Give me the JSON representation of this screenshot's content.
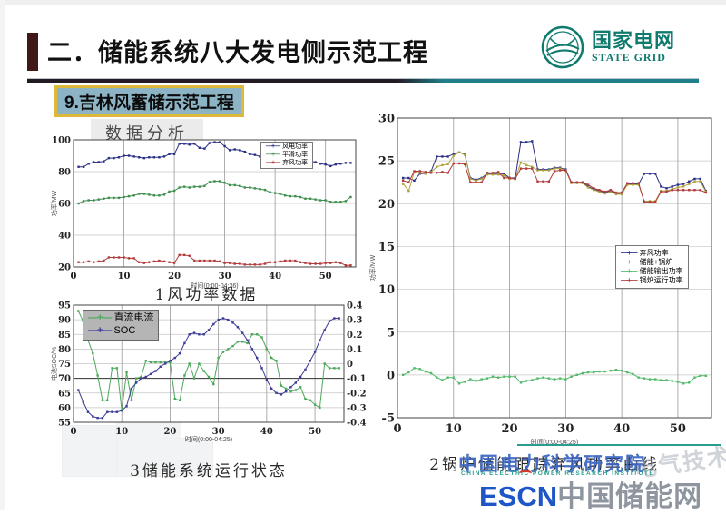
{
  "header": {
    "title": "二．储能系统八大发电侧示范工程",
    "logo_cn": "国家电网",
    "logo_en": "STATE GRID"
  },
  "subtitle": "9.吉林风蓄储示范工程",
  "section_label": "数据分析",
  "watermarks": {
    "cepri": "中国电力科学研究院",
    "cepri_en": "CHINA ELECTRIC POWER RESEARCH INSTITUTE",
    "escn_prefix": "ESCN",
    "escn_name": "中国储能网",
    "ghost": "电气技术"
  },
  "colors": {
    "brand_teal": "#0f7b6e",
    "highlight_border": "#ddb83a",
    "subtitle_bg": "#8cb4c5",
    "wm_blue": "#3a66c2",
    "escn_blue": "#1e56c8"
  },
  "chart_data": [
    {
      "id": "c1",
      "type": "line",
      "caption": "1风功率数据",
      "xlabel": "时间(0:00-04:26)",
      "ylabel": "功率/MW",
      "xlim": [
        0,
        56
      ],
      "x_ticks": [
        0,
        10,
        20,
        30,
        40,
        50
      ],
      "ylim": [
        20,
        100
      ],
      "y_ticks": [
        20,
        40,
        60,
        80,
        100
      ],
      "legend_position": "top-right",
      "series": [
        {
          "name": "风电功率",
          "color": "#2b2f86",
          "values": [
            83,
            83,
            85,
            86,
            86,
            86.5,
            88.5,
            88.5,
            89,
            90,
            90,
            89.5,
            89,
            88.5,
            89,
            89,
            89,
            89.5,
            91,
            91,
            97.5,
            97.5,
            97,
            97.5,
            95,
            94.5,
            98,
            98.5,
            98.5,
            96,
            93.5,
            94,
            93.5,
            92.5,
            91,
            90.5,
            89.5,
            89.5,
            88.5,
            88.5,
            88,
            88,
            88,
            87.5,
            87,
            86.5,
            86.5,
            86,
            85,
            84.5,
            83.5,
            84.5,
            85,
            85.5,
            85.5
          ]
        },
        {
          "name": "平滑功率",
          "color": "#3e8e4e",
          "values": [
            60,
            61.5,
            62,
            62,
            62.5,
            63,
            63.5,
            63.5,
            63.5,
            64,
            64.5,
            65,
            66,
            66,
            65.5,
            65,
            65,
            65.5,
            67.5,
            68,
            70,
            70.5,
            70,
            70.5,
            70.5,
            71,
            73.5,
            74,
            74,
            73,
            71.5,
            71.5,
            71,
            70,
            70,
            69.5,
            69,
            68.5,
            67,
            66.5,
            66,
            65,
            64.5,
            64.5,
            64,
            63,
            63,
            62.5,
            62,
            62,
            61,
            61,
            61,
            61.5,
            64
          ]
        },
        {
          "name": "弃风功率",
          "color": "#b23a3a",
          "values": [
            23,
            23,
            23.5,
            23,
            23.5,
            24,
            26,
            26,
            26,
            26,
            25.5,
            25.5,
            23,
            22.5,
            23,
            23.5,
            24,
            23.5,
            23,
            22.5,
            27.5,
            27.5,
            27,
            24,
            24,
            24,
            24,
            24,
            23.5,
            22.5,
            22.5,
            22,
            22,
            21.5,
            21.5,
            21.5,
            21.5,
            22,
            23,
            23,
            23.5,
            24,
            24,
            24,
            23,
            22.5,
            22,
            22,
            22,
            22.5,
            22.5,
            23,
            22.5,
            21,
            21
          ]
        }
      ]
    },
    {
      "id": "c2",
      "type": "line",
      "caption": "2锅炉储能跟踪弃风功率曲线",
      "xlabel": "时间(0:00-04:25)",
      "ylabel": "功率/MW",
      "xlim": [
        0,
        56
      ],
      "x_ticks": [
        0,
        10,
        20,
        30,
        40,
        50
      ],
      "ylim": [
        -5,
        30
      ],
      "y_ticks": [
        -5,
        0,
        5,
        10,
        15,
        20,
        25,
        30
      ],
      "legend_position": "middle-right",
      "series": [
        {
          "name": "弃风功率",
          "color": "#2b2f86",
          "values": [
            23,
            23,
            22.7,
            23.5,
            23.5,
            23.8,
            25.5,
            25.5,
            25.5,
            25.8,
            26,
            25.8,
            23,
            22.8,
            23,
            23.5,
            23.5,
            23.5,
            23.5,
            23,
            23,
            27.2,
            27.2,
            27.3,
            24,
            24,
            24,
            24.2,
            24.2,
            24,
            22.5,
            22.5,
            22.5,
            22,
            21.7,
            21.5,
            21.3,
            21.5,
            21.2,
            21.2,
            22.3,
            22.3,
            22.3,
            23.5,
            23.5,
            23.5,
            22,
            21.8,
            22,
            22.2,
            22.3,
            22.6,
            22.9,
            22.9,
            21.5
          ]
        },
        {
          "name": "储能+锅炉",
          "color": "#b0a23c",
          "values": [
            22.3,
            21.5,
            23.7,
            23.6,
            23.5,
            23.7,
            24.3,
            24.5,
            24.6,
            25.6,
            26,
            25.7,
            22.9,
            22.7,
            22.9,
            23.4,
            23.4,
            23.4,
            23.3,
            22.9,
            22.9,
            24.8,
            24.5,
            24.3,
            23.9,
            23.9,
            23.9,
            24.1,
            24.1,
            23.9,
            22.4,
            22.4,
            22.4,
            21.9,
            21.6,
            21.4,
            21.2,
            21.4,
            21.1,
            21.1,
            22.2,
            22.2,
            22.2,
            20.3,
            20.3,
            20.3,
            21.5,
            21.5,
            21.7,
            21.9,
            22,
            22.3,
            22.6,
            22.6,
            21.4
          ]
        },
        {
          "name": "储能输出功率",
          "color": "#53b96a",
          "values": [
            0,
            0.3,
            0.8,
            0.7,
            0.4,
            0.2,
            -0.3,
            -0.6,
            -0.3,
            -0.3,
            -1,
            -0.8,
            -0.5,
            -0.7,
            -0.5,
            -0.4,
            -0.2,
            -0.3,
            -0.2,
            -0.2,
            -0.2,
            -0.9,
            -0.7,
            -0.6,
            -0.4,
            -0.3,
            -0.4,
            -0.5,
            -0.4,
            -0.5,
            -0.2,
            0,
            0.2,
            0.3,
            0.3,
            0.4,
            0.4,
            0.5,
            0.6,
            0.5,
            0.3,
            0.1,
            -0.3,
            -0.4,
            -0.5,
            -0.5,
            -0.6,
            -0.6,
            -0.7,
            -0.8,
            -1,
            -0.9,
            -0.3,
            -0.1,
            -0.1
          ]
        },
        {
          "name": "锅炉运行功率",
          "color": "#b23a3a",
          "values": [
            22.7,
            22.5,
            23.8,
            23.8,
            23.7,
            23.6,
            23.6,
            23.7,
            23.6,
            24.7,
            24.7,
            24.6,
            22.5,
            22.5,
            22.5,
            23.6,
            23.6,
            23.7,
            23,
            23,
            22.9,
            24.1,
            24.1,
            24.1,
            22.6,
            22.6,
            22.6,
            23.8,
            23.9,
            23.9,
            22.5,
            22.5,
            22.5,
            22.2,
            21.8,
            21.6,
            21.4,
            21.6,
            21.3,
            21.3,
            22.4,
            22.4,
            22.4,
            20.2,
            20.2,
            20.2,
            21.4,
            21.4,
            21.6,
            21.6,
            21.6,
            21.6,
            21.6,
            21.6,
            21.3
          ]
        }
      ]
    },
    {
      "id": "c3",
      "type": "line",
      "caption": "3储能系统运行状态",
      "xlabel": "时间(0:00-04:25)",
      "ylabel": "电池SOC/%",
      "xlim": [
        0,
        56
      ],
      "x_ticks": [
        0,
        10,
        20,
        30,
        40,
        50
      ],
      "ylim": [
        55,
        95
      ],
      "y_ticks": [
        55,
        60,
        65,
        70,
        75,
        80,
        85,
        90,
        95
      ],
      "y2lim": [
        -0.4,
        0.4
      ],
      "y2_ticks": [
        -0.4,
        -0.3,
        -0.2,
        -0.1,
        0,
        0.1,
        0.2,
        0.3,
        0.4
      ],
      "hlines": [
        70
      ],
      "legend_position": "top-left",
      "series": [
        {
          "name": "直流电流",
          "color": "#4aa85a",
          "axis": "y2",
          "values": [
            0.36,
            0.29,
            0.16,
            0.07,
            -0.08,
            -0.25,
            -0.25,
            -0.03,
            -0.03,
            -0.32,
            -0.06,
            -0.25,
            -0.1,
            -0.09,
            0.02,
            0.01,
            0.01,
            0.01,
            0.01,
            0.01,
            -0.24,
            -0.25,
            -0.08,
            0,
            -0.1,
            0,
            -0.05,
            -0.09,
            -0.14,
            0.04,
            0.08,
            0.1,
            0.12,
            0.15,
            0.15,
            0.14,
            0.2,
            0.2,
            0.18,
            0.1,
            0.04,
            0.02,
            -0.15,
            -0.17,
            -0.19,
            -0.18,
            -0.16,
            -0.24,
            -0.25,
            -0.28,
            -0.3,
            0,
            -0.03,
            -0.03,
            -0.03
          ]
        },
        {
          "name": "SOC",
          "color": "#3c3c96",
          "axis": "y",
          "values": [
            66,
            62,
            58.5,
            57,
            56.5,
            56.5,
            58.5,
            58.5,
            58.5,
            59,
            60.5,
            66.5,
            68.5,
            70,
            70.5,
            71.5,
            72.5,
            74,
            75,
            76,
            77,
            78.5,
            82,
            85,
            85.5,
            85,
            85,
            86.5,
            88.5,
            90,
            90.5,
            90,
            89,
            87.5,
            85.5,
            83,
            80,
            77,
            73.5,
            69.5,
            66.5,
            65,
            64.5,
            65.5,
            67,
            68.5,
            70.5,
            73,
            76,
            79,
            83,
            86.5,
            89.5,
            90.5,
            90.5
          ]
        }
      ]
    }
  ]
}
